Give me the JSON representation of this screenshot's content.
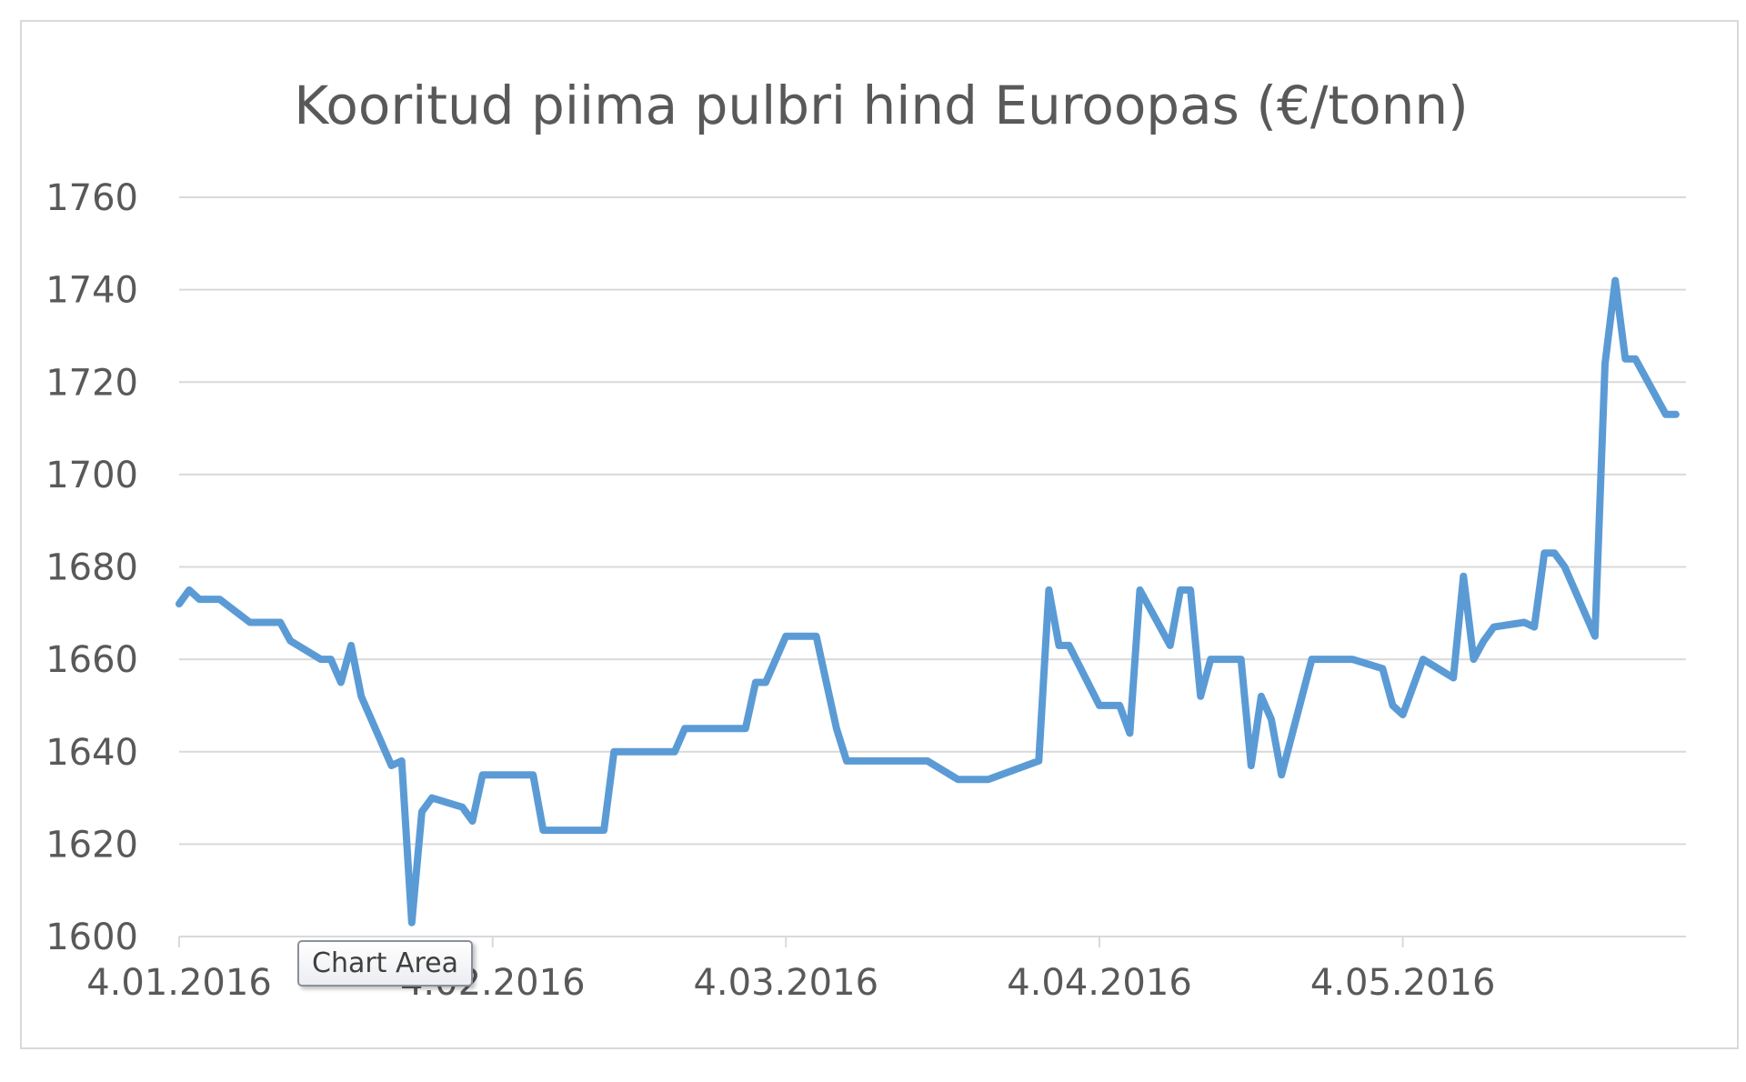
{
  "chart_data": {
    "type": "line",
    "title": "Kooritud piima pulbri hind Euroopas (€/tonn)",
    "xlabel": "",
    "ylabel": "",
    "ylim": [
      1600,
      1760
    ],
    "yticks": [
      "1600",
      "1620",
      "1640",
      "1660",
      "1680",
      "1700",
      "1720",
      "1740",
      "1760"
    ],
    "xlim": [
      "2016-01-04",
      "2016-06-01"
    ],
    "xticks": [
      {
        "date": "2016-01-04",
        "label": "4.01.2016"
      },
      {
        "date": "2016-02-04",
        "label": "4.02.2016"
      },
      {
        "date": "2016-03-04",
        "label": "4.03.2016"
      },
      {
        "date": "2016-04-04",
        "label": "4.04.2016"
      },
      {
        "date": "2016-05-04",
        "label": "4.05.2016"
      }
    ],
    "grid": true,
    "color": "#5b9bd5",
    "series": [
      {
        "x": [
          "2016-01-04",
          "2016-01-05",
          "2016-01-06",
          "2016-01-07",
          "2016-01-08",
          "2016-01-11",
          "2016-01-12",
          "2016-01-13",
          "2016-01-14",
          "2016-01-15",
          "2016-01-18",
          "2016-01-19",
          "2016-01-20",
          "2016-01-21",
          "2016-01-22",
          "2016-01-25",
          "2016-01-26",
          "2016-01-27",
          "2016-01-28",
          "2016-01-29",
          "2016-02-01",
          "2016-02-02",
          "2016-02-03",
          "2016-02-04",
          "2016-02-05",
          "2016-02-08",
          "2016-02-09",
          "2016-02-10",
          "2016-02-11",
          "2016-02-12",
          "2016-02-15",
          "2016-02-16",
          "2016-02-17",
          "2016-02-18",
          "2016-02-19",
          "2016-02-22",
          "2016-02-23",
          "2016-02-24",
          "2016-02-25",
          "2016-02-26",
          "2016-02-29",
          "2016-03-01",
          "2016-03-02",
          "2016-03-03",
          "2016-03-04",
          "2016-03-07",
          "2016-03-08",
          "2016-03-09",
          "2016-03-10",
          "2016-03-11",
          "2016-03-14",
          "2016-03-15",
          "2016-03-16",
          "2016-03-17",
          "2016-03-18",
          "2016-03-21",
          "2016-03-22",
          "2016-03-23",
          "2016-03-24",
          "2016-03-29",
          "2016-03-30",
          "2016-03-31",
          "2016-04-01",
          "2016-04-04",
          "2016-04-05",
          "2016-04-06",
          "2016-04-07",
          "2016-04-08",
          "2016-04-11",
          "2016-04-12",
          "2016-04-13",
          "2016-04-14",
          "2016-04-15",
          "2016-04-18",
          "2016-04-19",
          "2016-04-20",
          "2016-04-21",
          "2016-04-22",
          "2016-04-25",
          "2016-04-26",
          "2016-04-27",
          "2016-04-28",
          "2016-04-29",
          "2016-05-02",
          "2016-05-03",
          "2016-05-04",
          "2016-05-05",
          "2016-05-06",
          "2016-05-09",
          "2016-05-10",
          "2016-05-11",
          "2016-05-12",
          "2016-05-13",
          "2016-05-16",
          "2016-05-17",
          "2016-05-18",
          "2016-05-19",
          "2016-05-20",
          "2016-05-23",
          "2016-05-24",
          "2016-05-25",
          "2016-05-26",
          "2016-05-27",
          "2016-05-30",
          "2016-05-31"
        ],
        "y": [
          1672,
          1675,
          1673,
          1673,
          1673,
          1668,
          1668,
          1668,
          1668,
          1664,
          1660,
          1660,
          1655,
          1663,
          1652,
          1637,
          1638,
          1603,
          1627,
          1630,
          1628,
          1625,
          1635,
          1635,
          1635,
          1635,
          1623,
          1623,
          1623,
          1623,
          1623,
          1640,
          1640,
          1640,
          1640,
          1640,
          1645,
          1645,
          1645,
          1645,
          1645,
          1655,
          1655,
          1660,
          1665,
          1665,
          1655,
          1645,
          1638,
          1638,
          1638,
          1638,
          1638,
          1638,
          1638,
          1634,
          1634,
          1634,
          1634,
          1638,
          1675,
          1663,
          1663,
          1650,
          1650,
          1650,
          1644,
          1675,
          1663,
          1675,
          1675,
          1652,
          1660,
          1660,
          1637,
          1652,
          1647,
          1635,
          1660,
          1660,
          1660,
          1660,
          1660,
          1658,
          1650,
          1648,
          1654,
          1660,
          1656,
          1678,
          1660,
          1664,
          1667,
          1668,
          1667,
          1683,
          1683,
          1680,
          1665,
          1724,
          1742,
          1725,
          1725,
          1713,
          1713
        ]
      }
    ]
  },
  "tooltip": {
    "text": "Chart Area"
  }
}
